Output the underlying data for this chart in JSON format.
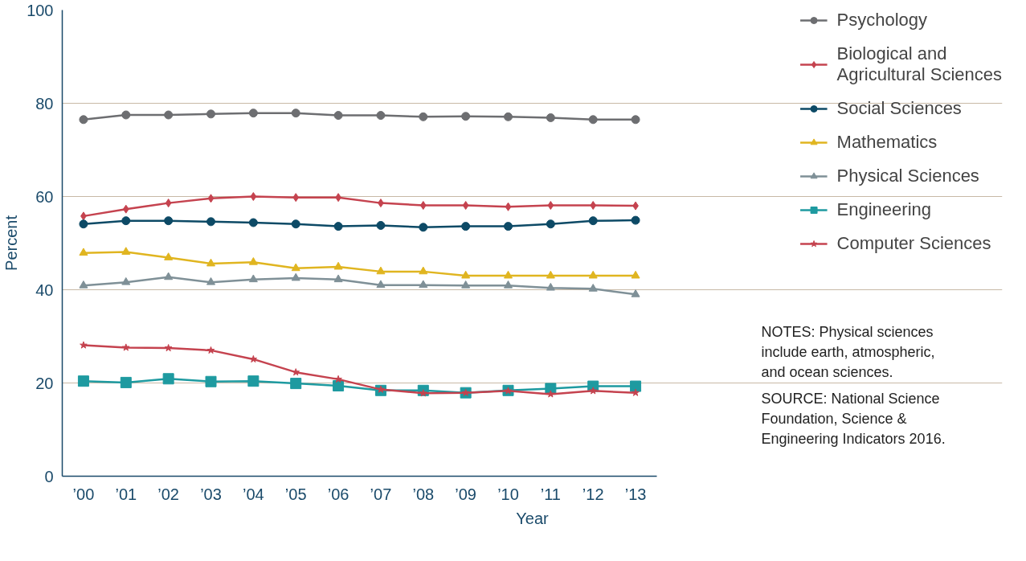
{
  "chart_data": {
    "type": "line",
    "xlabel": "Year",
    "ylabel": "Percent",
    "categories": [
      "’00",
      "’01",
      "’02",
      "’03",
      "’04",
      "’05",
      "’06",
      "’07",
      "’08",
      "’09",
      "’10",
      "’11",
      "’12",
      "’13"
    ],
    "ylim": [
      0,
      100
    ],
    "yticks": [
      0,
      20,
      40,
      60,
      80,
      100
    ],
    "grid": "y",
    "legend": "top right",
    "series": [
      {
        "name": "Psychology",
        "color": "#6d6e71",
        "marker": "circle",
        "values": [
          76.5,
          77.5,
          77.5,
          77.7,
          77.9,
          77.9,
          77.4,
          77.4,
          77.1,
          77.2,
          77.1,
          76.9,
          76.5,
          76.5
        ]
      },
      {
        "name": "Biological and Agricultural Sciences",
        "color": "#c5434f",
        "marker": "diamond",
        "values": [
          55.8,
          57.3,
          58.6,
          59.6,
          60.0,
          59.8,
          59.8,
          58.6,
          58.1,
          58.1,
          57.8,
          58.1,
          58.1,
          58.0
        ]
      },
      {
        "name": "Social Sciences",
        "color": "#0d4a66",
        "marker": "circle",
        "values": [
          54.1,
          54.8,
          54.8,
          54.6,
          54.4,
          54.1,
          53.6,
          53.8,
          53.4,
          53.6,
          53.6,
          54.1,
          54.8,
          54.9
        ]
      },
      {
        "name": "Mathematics",
        "color": "#e0b520",
        "marker": "triangle",
        "values": [
          47.9,
          48.1,
          46.9,
          45.6,
          45.9,
          44.6,
          44.9,
          43.9,
          43.9,
          43.0,
          43.0,
          43.0,
          43.0,
          43.0
        ]
      },
      {
        "name": "Physical Sciences",
        "color": "#7f9097",
        "marker": "triangle",
        "values": [
          40.9,
          41.6,
          42.7,
          41.6,
          42.2,
          42.5,
          42.2,
          41.0,
          41.0,
          40.9,
          40.9,
          40.4,
          40.2,
          39.0
        ]
      },
      {
        "name": "Engineering",
        "color": "#1e9aa0",
        "marker": "square",
        "values": [
          20.4,
          20.1,
          20.9,
          20.3,
          20.4,
          19.9,
          19.4,
          18.4,
          18.4,
          17.9,
          18.4,
          18.8,
          19.3,
          19.3
        ]
      },
      {
        "name": "Computer Sciences",
        "color": "#c5434f",
        "marker": "star",
        "values": [
          28.1,
          27.6,
          27.5,
          27.0,
          25.1,
          22.3,
          20.8,
          18.6,
          17.8,
          17.9,
          18.3,
          17.6,
          18.3,
          17.9
        ]
      }
    ],
    "annotations": [
      "NOTES: Physical sciences include earth, atmospheric, and ocean sciences.",
      "SOURCE: National Science Foundation, Science & Engineering Indicators 2016."
    ]
  }
}
